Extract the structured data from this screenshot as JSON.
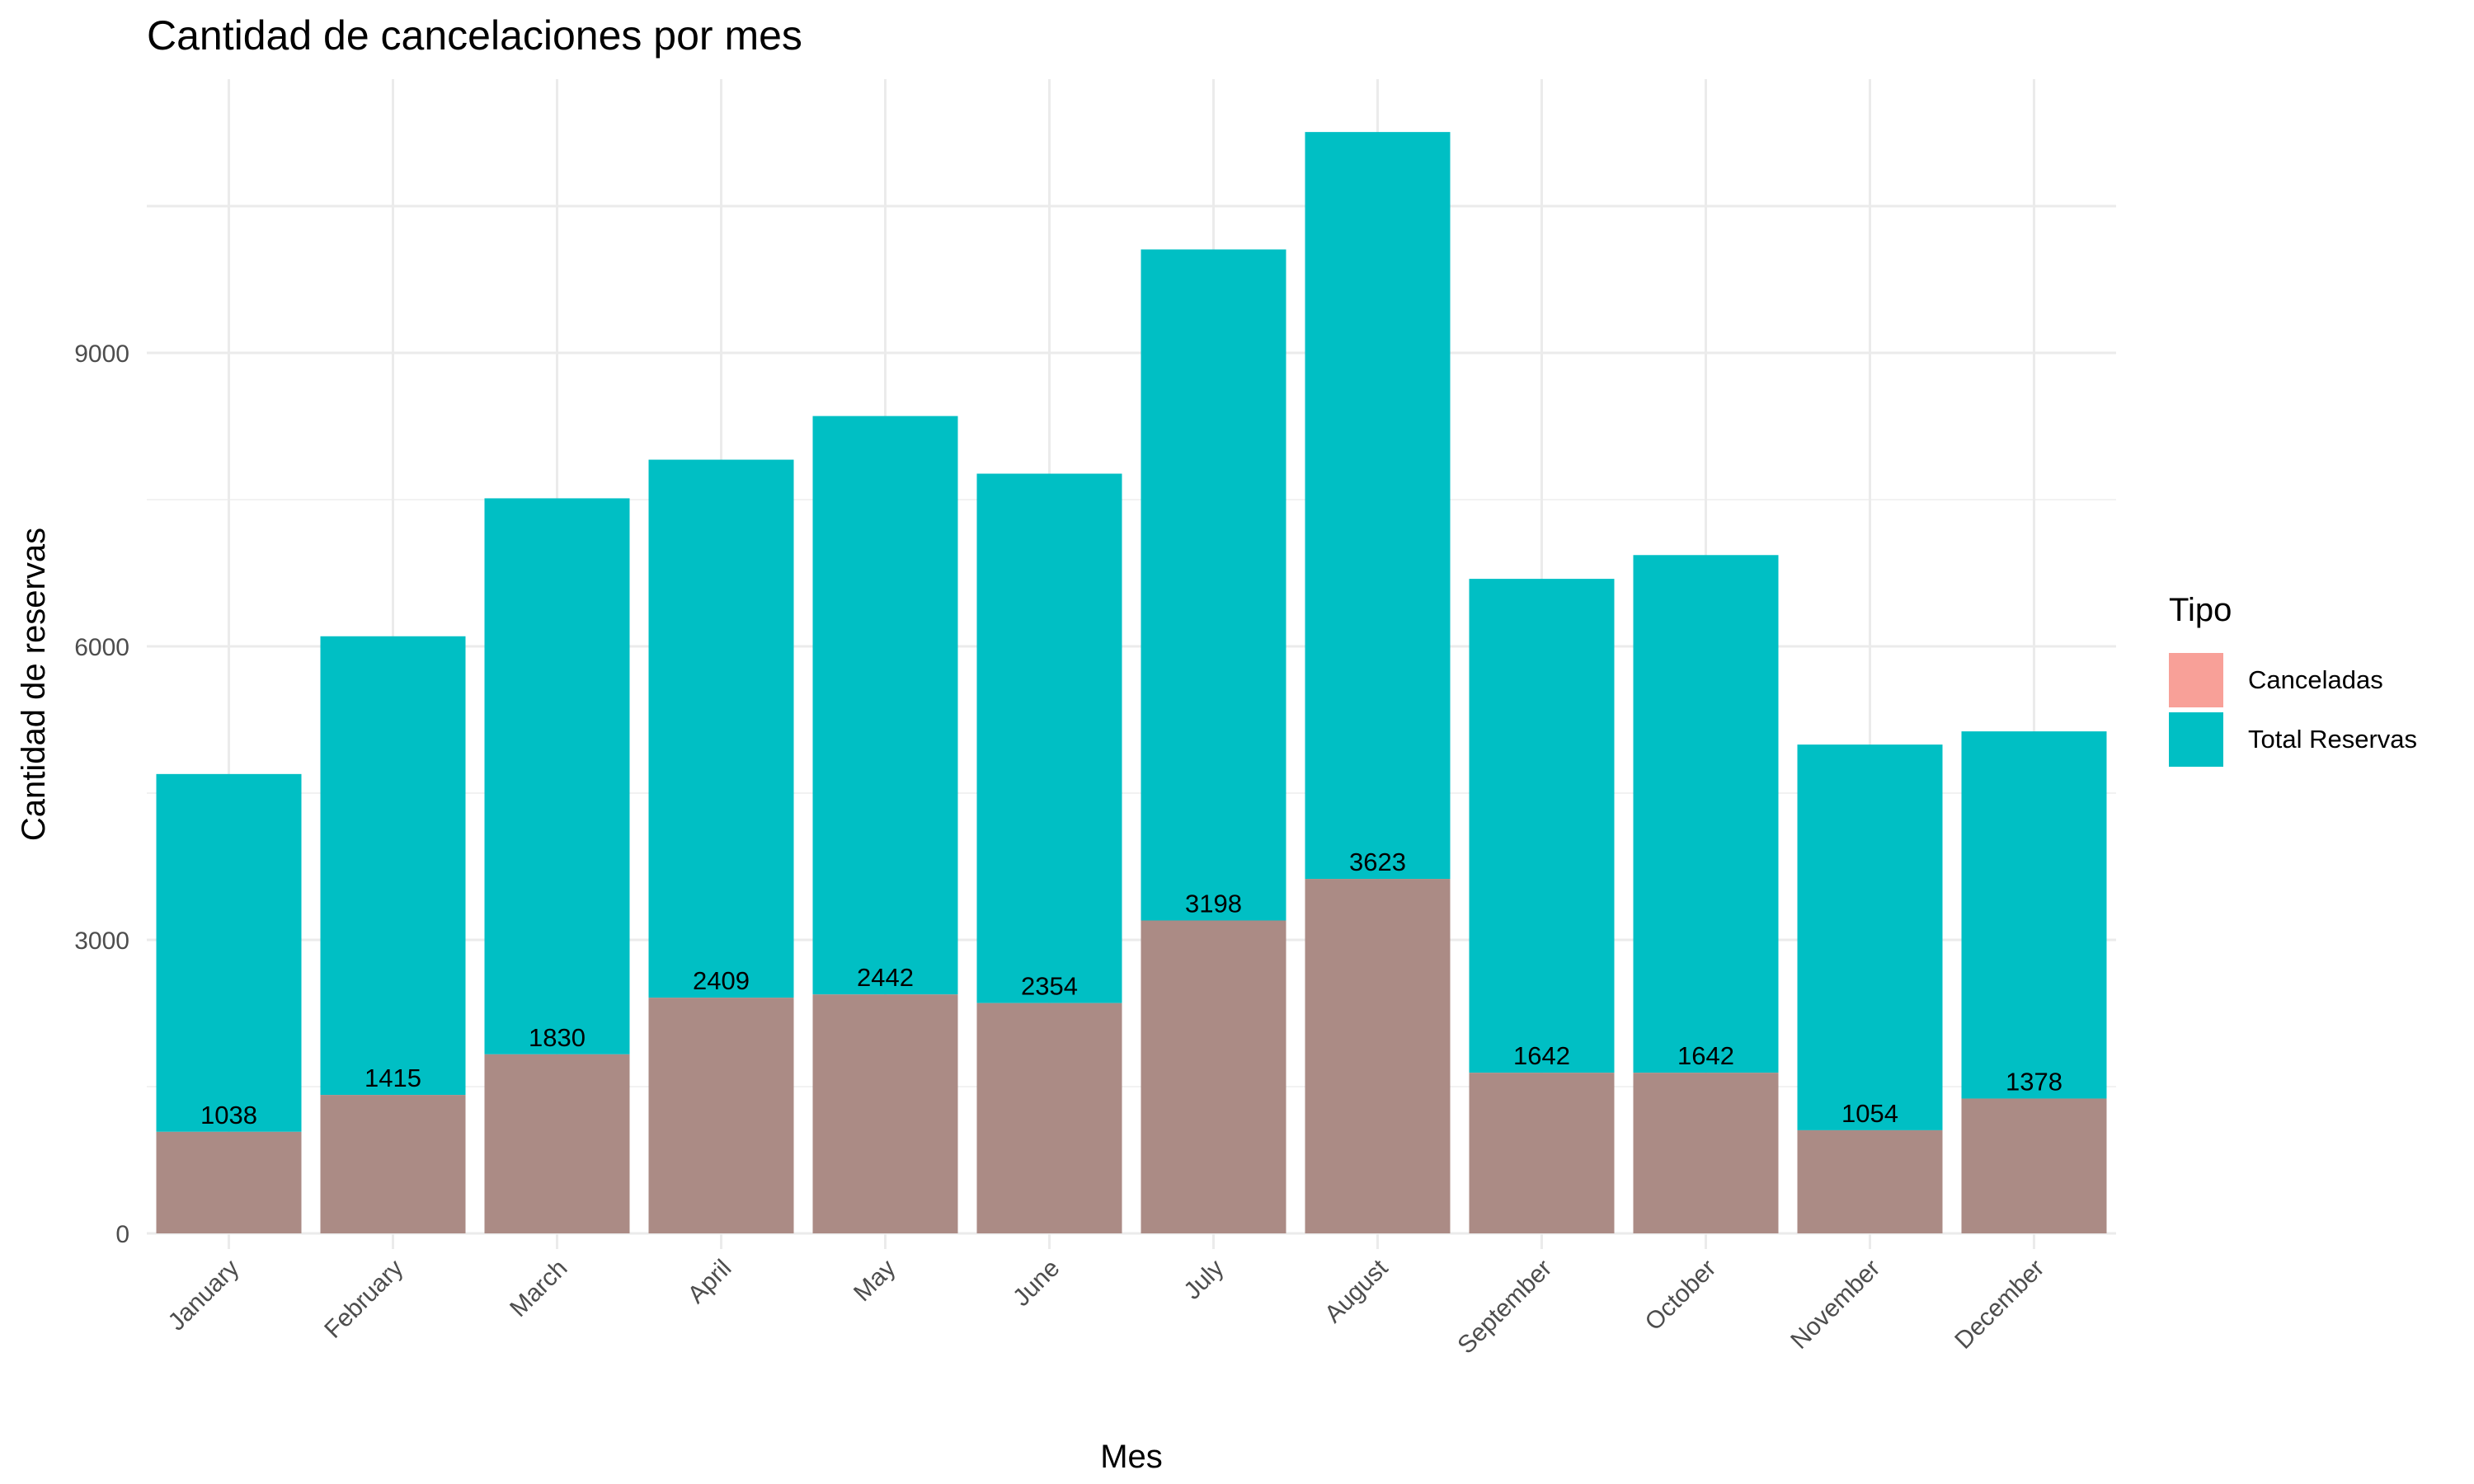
{
  "chart_data": {
    "type": "bar",
    "title": "Cantidad de cancelaciones por mes",
    "xlabel": "Mes",
    "ylabel": "Cantidad de reservas",
    "categories": [
      "January",
      "February",
      "March",
      "April",
      "May",
      "June",
      "July",
      "August",
      "September",
      "October",
      "November",
      "December"
    ],
    "series": [
      {
        "name": "Canceladas",
        "color": "#F8A098",
        "values": [
          1038,
          1415,
          1830,
          2409,
          2442,
          2354,
          3198,
          3623,
          1642,
          1642,
          1054,
          1378
        ]
      },
      {
        "name": "Total Reservas",
        "color": "#00BFC4",
        "values": [
          4695,
          6103,
          7513,
          7908,
          8354,
          7765,
          10057,
          11257,
          6690,
          6933,
          4996,
          5131
        ]
      }
    ],
    "overlap_color": "#AB8B85",
    "data_labels": "Canceladas",
    "yticks": [
      0,
      3000,
      6000,
      9000
    ],
    "ylim": [
      0,
      12000
    ],
    "grid": true,
    "legend": {
      "title": "Tipo",
      "placement": "right"
    }
  }
}
